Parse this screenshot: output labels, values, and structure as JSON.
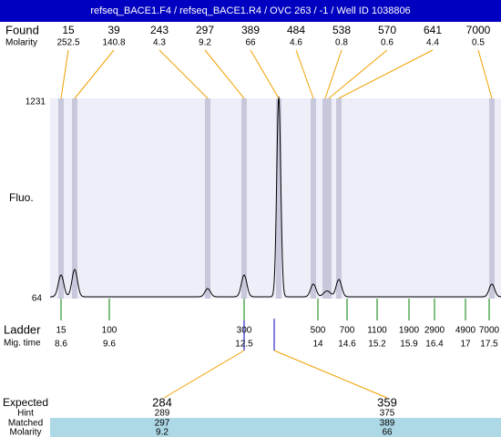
{
  "header": {
    "title": "refseq_BACE1.F4 / refseq_BACE1.R4 / OVC 263 / -1 / Well ID 1038806"
  },
  "found": {
    "label": "Found",
    "molarity_label": "Molarity",
    "peaks": [
      {
        "size": 15,
        "molarity": 252.5
      },
      {
        "size": 39,
        "molarity": 140.8
      },
      {
        "size": 243,
        "molarity": 4.3
      },
      {
        "size": 297,
        "molarity": 9.2
      },
      {
        "size": 389,
        "molarity": 66
      },
      {
        "size": 484,
        "molarity": 4.6
      },
      {
        "size": 538,
        "molarity": 0.8
      },
      {
        "size": 570,
        "molarity": 0.6
      },
      {
        "size": 641,
        "molarity": 4.4
      },
      {
        "size": 7000,
        "molarity": 0.5
      }
    ]
  },
  "axis": {
    "ymax": 1231,
    "ymin": 64,
    "label": "Fluo."
  },
  "ladder": {
    "label": "Ladder",
    "mig_label": "Mig. time",
    "items": [
      {
        "size": 15,
        "time": 8.6
      },
      {
        "size": 100,
        "time": 9.6
      },
      {
        "size": 300,
        "time": 12.5
      },
      {
        "size": 500,
        "time": 14
      },
      {
        "size": 700,
        "time": 14.6
      },
      {
        "size": 1100,
        "time": 15.2
      },
      {
        "size": 1900,
        "time": 15.9
      },
      {
        "size": 2900,
        "time": 16.4
      },
      {
        "size": 4900,
        "time": 17
      },
      {
        "size": 7000,
        "time": 17.5
      }
    ]
  },
  "expected": {
    "labels": [
      "Expected",
      "Hint",
      "Matched",
      "Molarity"
    ],
    "columns": [
      {
        "expected": 284,
        "hint": 289,
        "matched": 297,
        "molarity": 9.2
      },
      {
        "expected": 359,
        "hint": 375,
        "matched": 389,
        "molarity": 66
      }
    ]
  }
}
